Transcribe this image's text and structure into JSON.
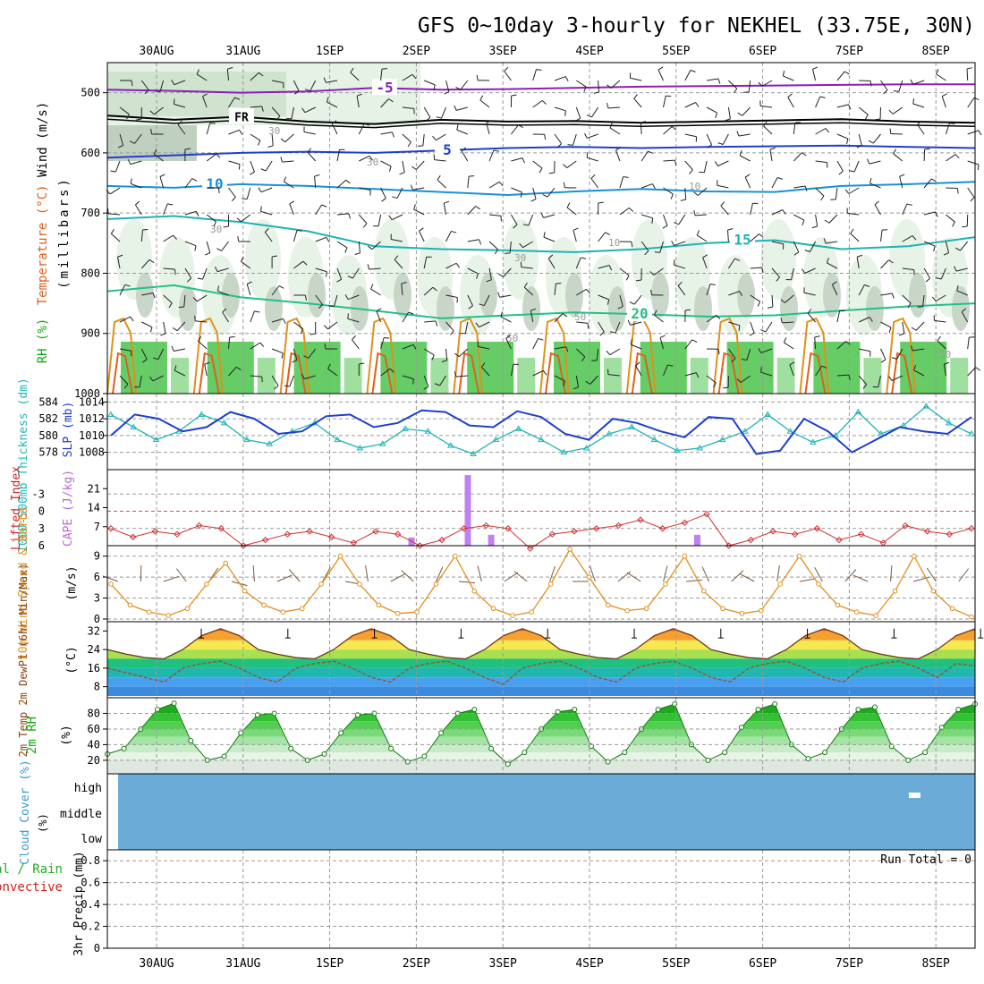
{
  "title": "GFS 0~10day 3-hourly for NEKHEL (33.75E, 30N)",
  "dates": [
    "30AUG",
    "31AUG",
    "1SEP",
    "2SEP",
    "3SEP",
    "4SEP",
    "5SEP",
    "6SEP",
    "7SEP",
    "8SEP"
  ],
  "chart_data": [
    {
      "type": "contour",
      "id": "upper-air",
      "y_label_parts": {
        "rh": "RH (%)",
        "temp": "Temperature (°C)",
        "wind": "Wind (m/s)",
        "unit": "(millibars)"
      },
      "ylim": [
        1000,
        450
      ],
      "pressure_ticks": [
        1000,
        900,
        800,
        700,
        600,
        500
      ],
      "isotherms": [
        {
          "label": "-5",
          "pressure": [
            495,
            497,
            500,
            498,
            492,
            495,
            494,
            492,
            490,
            489,
            488,
            487,
            486,
            486
          ],
          "color": "#8a1fb5"
        },
        {
          "label": "FR",
          "pressure": [
            538,
            545,
            540,
            548,
            552,
            545,
            548,
            547,
            550,
            548,
            546,
            544,
            548,
            550
          ],
          "color": "#000000"
        },
        {
          "label": "5",
          "pressure": [
            608,
            604,
            600,
            598,
            600,
            596,
            592,
            590,
            592,
            590,
            589,
            588,
            590,
            592
          ],
          "color": "#1e3fcc"
        },
        {
          "label": "10",
          "pressure": [
            655,
            658,
            652,
            655,
            660,
            665,
            670,
            664,
            660,
            664,
            665,
            655,
            652,
            648
          ],
          "color": "#1890d8"
        },
        {
          "label": "15",
          "pressure": [
            710,
            705,
            715,
            730,
            755,
            760,
            762,
            765,
            760,
            750,
            745,
            760,
            755,
            740
          ],
          "color": "#1cb3b3"
        },
        {
          "label": "20",
          "pressure": [
            830,
            820,
            840,
            850,
            862,
            875,
            870,
            865,
            868,
            872,
            870,
            862,
            855,
            850
          ],
          "color": "#22c088"
        }
      ],
      "rh_labels": [
        "30",
        "30",
        "30",
        "50",
        "50",
        "30",
        "10",
        "10",
        "50"
      ]
    },
    {
      "type": "line",
      "id": "slp-thickness",
      "y_label_left": "1000-500mb Thickness (dm)",
      "y_label_right": "SLP (mb)",
      "left_ticks": [
        578,
        580,
        582,
        584
      ],
      "right_ticks": [
        1008,
        1010,
        1012,
        1014
      ],
      "series": [
        {
          "quantity": "SLP",
          "color": "#1e3fcc",
          "values": [
            1010,
            1012.5,
            1012,
            1010.5,
            1011,
            1012.8,
            1012,
            1010.2,
            1010.5,
            1012.3,
            1012.5,
            1011,
            1011.5,
            1013,
            1012.8,
            1011.2,
            1011,
            1012.9,
            1012.2,
            1010.2,
            1009.5,
            1012,
            1011.5,
            1010.5,
            1009.8,
            1012.2,
            1012,
            1007.8,
            1008.2,
            1012,
            1010.5,
            1008,
            1009.5,
            1011,
            1010.5,
            1010.2,
            1012.2
          ]
        },
        {
          "quantity": "Thickness",
          "color": "#22b5b5",
          "values": [
            582.5,
            581,
            579.5,
            580.5,
            582.5,
            581.5,
            579.5,
            579,
            580.5,
            581.5,
            579.5,
            578.5,
            579,
            580.8,
            580.5,
            578.8,
            577.8,
            579.5,
            580.8,
            579.5,
            578,
            578.5,
            580.2,
            581,
            579.5,
            578.2,
            578.5,
            579.5,
            580.5,
            582.5,
            580.5,
            579.2,
            580,
            582.8,
            580.2,
            581.2,
            583.5,
            581.5,
            580.2
          ]
        }
      ]
    },
    {
      "type": "line+bar",
      "id": "cape-li",
      "y_label_left": "Lifted Index",
      "y_label_right": "CAPE (J/kg)",
      "li_ticks": [
        "-3",
        "0",
        "3",
        "6"
      ],
      "cape_ticks": [
        7,
        14,
        21
      ],
      "li_values": [
        3,
        4.5,
        3.5,
        4,
        2.5,
        3,
        6,
        5,
        4,
        3.5,
        4.5,
        5.5,
        3.5,
        4,
        6,
        5,
        3,
        2.5,
        3,
        6.5,
        4,
        3.5,
        3,
        2.5,
        1.5,
        3,
        2,
        0.5,
        6,
        5,
        3.5,
        4,
        3,
        5,
        4,
        5.5,
        2.5,
        3.5,
        4,
        3
      ],
      "cape_bars": [
        {
          "day": 2.95,
          "value": 3
        },
        {
          "day": 3.6,
          "value": 26
        },
        {
          "day": 3.87,
          "value": 4
        },
        {
          "day": 6.25,
          "value": 4
        }
      ]
    },
    {
      "type": "line",
      "id": "wind-10m",
      "y_label": "10m Wind Speed & Barbs",
      "unit": "(m/s)",
      "ticks": [
        0,
        3,
        6,
        9
      ],
      "values": [
        5,
        2,
        1,
        0.5,
        1.5,
        5,
        8,
        4,
        2,
        1,
        1.5,
        5,
        9,
        5,
        2,
        0.8,
        1,
        5,
        9,
        4,
        1.5,
        0.5,
        1,
        5,
        10,
        6,
        2,
        1.2,
        1.5,
        5,
        9,
        4,
        1.5,
        0.8,
        1.2,
        5,
        9,
        5,
        2,
        1,
        0.5,
        4,
        9,
        4,
        1.5,
        0.3
      ]
    },
    {
      "type": "area",
      "id": "temp-2m",
      "y_label": "2m Temp 2m DewPt (6hr Min/Max)",
      "unit": "(°C)",
      "ticks": [
        8,
        16,
        24,
        32
      ],
      "temp": [
        24,
        22,
        20.5,
        20,
        24,
        30,
        33,
        30,
        24,
        22,
        20.5,
        20,
        24,
        30,
        33,
        30,
        24,
        22,
        20.5,
        20,
        24,
        30,
        33,
        30,
        24,
        22,
        20.5,
        20,
        24,
        30,
        33,
        30,
        24,
        22,
        20.5,
        20,
        24,
        30,
        33,
        30,
        24,
        22,
        20.5,
        20,
        24,
        30,
        33
      ],
      "dewpt": [
        16,
        14,
        12,
        10,
        16,
        18,
        19,
        16,
        12,
        10,
        16,
        18,
        19,
        16,
        12,
        10,
        16,
        18,
        19,
        16,
        12,
        9,
        16,
        18,
        19,
        16,
        12,
        10,
        16,
        18,
        19,
        16,
        12,
        10,
        16,
        18,
        19,
        16,
        12,
        10,
        16,
        18,
        19,
        16,
        12,
        18,
        17
      ]
    },
    {
      "type": "area",
      "id": "rh-2m",
      "y_label": "2m RH",
      "unit": "(%)",
      "ticks": [
        20,
        40,
        60,
        80
      ],
      "values": [
        28,
        35,
        60,
        85,
        93,
        45,
        20,
        25,
        55,
        78,
        80,
        35,
        20,
        28,
        55,
        78,
        80,
        35,
        18,
        25,
        55,
        80,
        85,
        35,
        15,
        30,
        60,
        82,
        85,
        38,
        18,
        30,
        60,
        85,
        92,
        40,
        20,
        30,
        62,
        85,
        92,
        40,
        22,
        30,
        60,
        85,
        88,
        38,
        20,
        30,
        62,
        85,
        92
      ]
    },
    {
      "type": "heatmap",
      "id": "cloud-cover",
      "y_label": "Cloud Cover (%)",
      "levels": [
        "high",
        "middle",
        "low"
      ],
      "base_color": "#6aabd8"
    },
    {
      "type": "bar",
      "id": "precip",
      "y_label": "3hr Precip (mm)",
      "legend_total": "Total / Rain",
      "legend_conv": "Convective",
      "run_total": "Run Total = 0",
      "ticks": [
        "0",
        "0.2",
        "0.4",
        "0.6",
        "0.8"
      ],
      "ylim": [
        0,
        0.9
      ]
    }
  ]
}
